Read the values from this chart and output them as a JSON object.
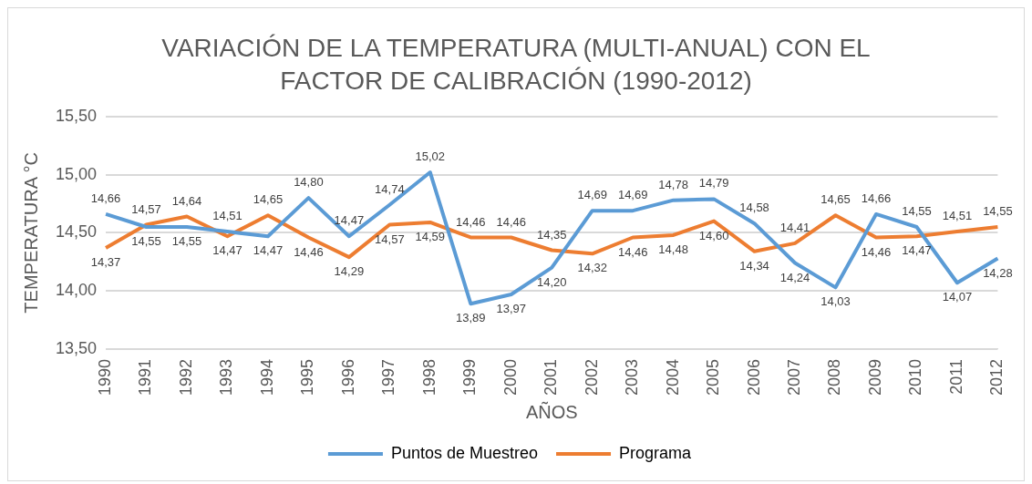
{
  "chart_data": {
    "type": "line",
    "title": "VARIACIÓN DE LA TEMPERATURA (MULTI-ANUAL) CON EL FACTOR DE CALIBRACIÓN (1990-2012)",
    "xlabel": "AÑOS",
    "ylabel": "TEMPERATURA °C",
    "categories": [
      "1990",
      "1991",
      "1992",
      "1993",
      "1994",
      "1995",
      "1996",
      "1997",
      "1998",
      "1999",
      "2000",
      "2001",
      "2002",
      "2003",
      "2004",
      "2005",
      "2006",
      "2007",
      "2008",
      "2009",
      "2010",
      "2011",
      "2012"
    ],
    "series": [
      {
        "name": "Puntos de Muestreo",
        "color": "#5b9bd5",
        "values": [
          14.66,
          14.55,
          14.55,
          14.51,
          14.47,
          14.8,
          14.47,
          14.74,
          15.02,
          13.89,
          13.97,
          14.2,
          14.69,
          14.69,
          14.78,
          14.79,
          14.58,
          14.24,
          14.03,
          14.66,
          14.55,
          14.07,
          14.28
        ],
        "value_labels": [
          "14,66",
          "14,55",
          "14,55",
          "14,51",
          "14,47",
          "14,80",
          "14,47",
          "14,74",
          "15,02",
          "13,89",
          "13,97",
          "14,20",
          "14,69",
          "14,69",
          "14,78",
          "14,79",
          "14,58",
          "14,24",
          "14,03",
          "14,66",
          "14,55",
          "14,07",
          "14,28"
        ]
      },
      {
        "name": "Programa",
        "color": "#ed7d31",
        "values": [
          14.37,
          14.57,
          14.64,
          14.47,
          14.65,
          14.46,
          14.29,
          14.57,
          14.59,
          14.46,
          14.46,
          14.35,
          14.32,
          14.46,
          14.48,
          14.6,
          14.34,
          14.41,
          14.65,
          14.46,
          14.47,
          14.51,
          14.55
        ],
        "value_labels": [
          "14,37",
          "14,57",
          "14,64",
          "14,47",
          "14,65",
          "14,46",
          "14,29",
          "14,57",
          "14,59",
          "14,46",
          "14,46",
          "14,35",
          "14,32",
          "14,46",
          "14,48",
          "14,60",
          "14,34",
          "14,41",
          "14,65",
          "14,46",
          "14,47",
          "14,51",
          "14,55"
        ]
      }
    ],
    "ylim": [
      13.5,
      15.5
    ],
    "yticks": [
      {
        "value": 13.5,
        "label": "13,50"
      },
      {
        "value": 14,
        "label": "14,00"
      },
      {
        "value": 14.5,
        "label": "14,50"
      },
      {
        "value": 15,
        "label": "15,00"
      },
      {
        "value": 15.5,
        "label": "15,50"
      }
    ],
    "grid": "y",
    "legend": "bottom",
    "marker": "none"
  }
}
